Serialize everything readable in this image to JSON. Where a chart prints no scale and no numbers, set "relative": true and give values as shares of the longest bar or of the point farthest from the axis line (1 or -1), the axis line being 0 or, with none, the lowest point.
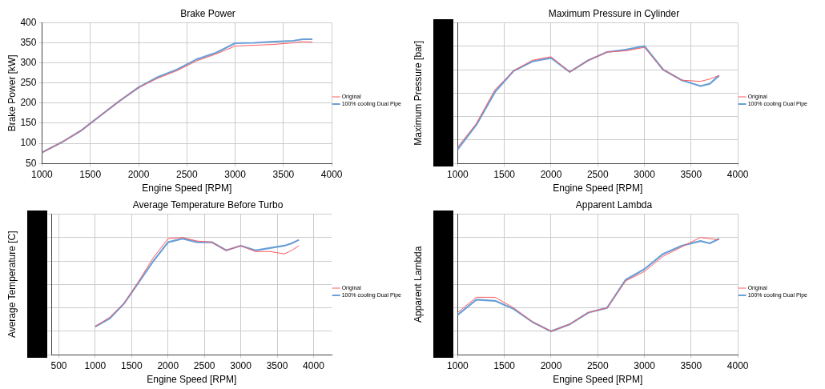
{
  "chart_data": [
    {
      "type": "line",
      "title": "Brake Power",
      "xlabel": "Engine Speed [RPM]",
      "ylabel": "Brake Power [kW]",
      "x": [
        1000,
        1200,
        1400,
        1600,
        1800,
        2000,
        2200,
        2400,
        2600,
        2800,
        3000,
        3200,
        3400,
        3600,
        3700,
        3800
      ],
      "xlim": [
        1000,
        4000
      ],
      "xticks": [
        1000,
        1500,
        2000,
        2500,
        3000,
        3500,
        4000
      ],
      "ylim": [
        50,
        400
      ],
      "yticks": [
        50,
        100,
        150,
        200,
        250,
        300,
        350,
        400
      ],
      "grid": true,
      "legend": "right",
      "series": [
        {
          "name": "Original",
          "color": "#ff5a5f",
          "values": [
            77,
            102,
            131,
            168,
            205,
            239,
            262,
            281,
            305,
            322,
            342,
            344,
            346,
            350,
            353,
            352
          ]
        },
        {
          "name": "100% cooling Dual Pipe",
          "color": "#6a9fd8",
          "values": [
            77,
            102,
            131,
            168,
            205,
            239,
            265,
            284,
            309,
            325,
            349,
            350,
            353,
            355,
            359,
            359
          ]
        }
      ]
    },
    {
      "type": "line",
      "title": "Maximum Pressure in Cylinder",
      "xlabel": "Engine Speed [RPM]",
      "ylabel": "Maximum Pressure [bar]",
      "relative": true,
      "x": [
        1000,
        1200,
        1400,
        1600,
        1800,
        2000,
        2200,
        2400,
        2600,
        2800,
        3000,
        3200,
        3400,
        3600,
        3700,
        3800
      ],
      "xlim": [
        1000,
        4000
      ],
      "xticks": [
        1000,
        1500,
        2000,
        2500,
        3000,
        3500,
        4000
      ],
      "grid": true,
      "legend": "right",
      "series": [
        {
          "name": "Original",
          "color": "#ff5a5f",
          "values": [
            0.14,
            0.34,
            0.63,
            0.79,
            0.88,
            0.91,
            0.78,
            0.88,
            0.95,
            0.96,
            0.99,
            0.8,
            0.71,
            0.7,
            0.72,
            0.75
          ]
        },
        {
          "name": "100% cooling Dual Pipe",
          "color": "#6a9fd8",
          "values": [
            0.12,
            0.33,
            0.61,
            0.79,
            0.87,
            0.9,
            0.78,
            0.88,
            0.95,
            0.97,
            1.0,
            0.8,
            0.71,
            0.66,
            0.68,
            0.75
          ]
        }
      ]
    },
    {
      "type": "line",
      "title": "Average Temperature Before Turbo",
      "xlabel": "Engine Speed [RPM]",
      "ylabel": "Average Temperature [C]",
      "relative": true,
      "x": [
        1000,
        1200,
        1400,
        1600,
        1800,
        2000,
        2200,
        2400,
        2600,
        2800,
        3000,
        3200,
        3400,
        3600,
        3700,
        3800
      ],
      "xlim": [
        400,
        4250
      ],
      "xticks": [
        500,
        1000,
        1500,
        2000,
        2500,
        3000,
        3500,
        4000
      ],
      "grid": true,
      "legend": "right",
      "series": [
        {
          "name": "Original",
          "color": "#ff5a5f",
          "values": [
            0.24,
            0.32,
            0.44,
            0.63,
            0.83,
            0.99,
            1.0,
            0.97,
            0.96,
            0.89,
            0.93,
            0.88,
            0.88,
            0.86,
            0.89,
            0.93
          ]
        },
        {
          "name": "100% cooling Dual Pipe",
          "color": "#6a9fd8",
          "values": [
            0.24,
            0.31,
            0.44,
            0.62,
            0.8,
            0.96,
            0.99,
            0.96,
            0.96,
            0.89,
            0.93,
            0.89,
            0.91,
            0.93,
            0.95,
            0.98
          ]
        }
      ]
    },
    {
      "type": "line",
      "title": "Apparent Lambda",
      "xlabel": "Engine Speed [RPM]",
      "ylabel": "Apparent Lambda",
      "relative": true,
      "x": [
        1000,
        1200,
        1400,
        1600,
        1800,
        2000,
        2200,
        2400,
        2600,
        2800,
        3000,
        3200,
        3400,
        3600,
        3700,
        3800
      ],
      "xlim": [
        1000,
        4000
      ],
      "xticks": [
        1000,
        1500,
        2000,
        2500,
        3000,
        3500,
        4000
      ],
      "grid": true,
      "legend": "right",
      "series": [
        {
          "name": "Original",
          "color": "#ff5a5f",
          "values": [
            0.36,
            0.49,
            0.49,
            0.4,
            0.28,
            0.2,
            0.26,
            0.36,
            0.4,
            0.63,
            0.71,
            0.84,
            0.92,
            1.0,
            0.99,
            0.98
          ]
        },
        {
          "name": "100% cooling Dual Pipe",
          "color": "#6a9fd8",
          "values": [
            0.34,
            0.47,
            0.46,
            0.39,
            0.28,
            0.2,
            0.26,
            0.36,
            0.4,
            0.64,
            0.73,
            0.86,
            0.93,
            0.97,
            0.95,
            0.99
          ]
        }
      ]
    }
  ]
}
